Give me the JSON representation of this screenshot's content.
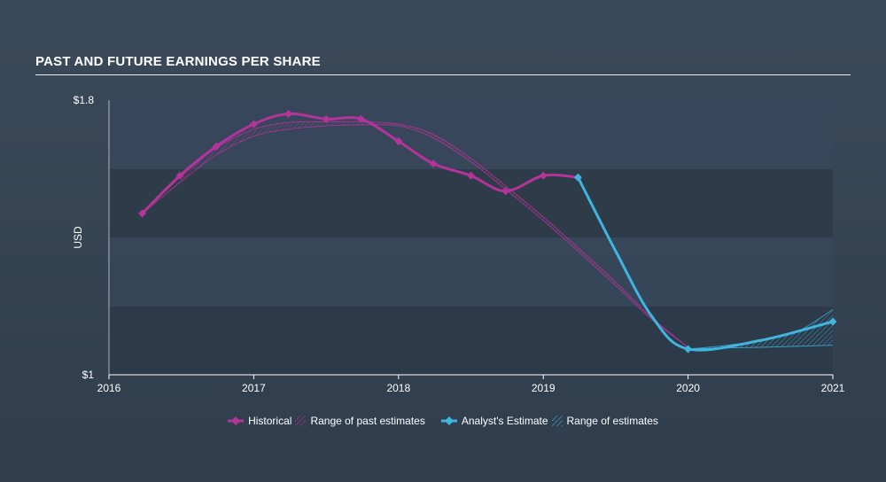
{
  "title": "PAST AND FUTURE EARNINGS PER SHARE",
  "colors": {
    "historical": "#b5349a",
    "estimate": "#3fb5e0",
    "band_dark": "#2d3a48",
    "band_light": "#37465a"
  },
  "chart_data": {
    "type": "line",
    "title": "PAST AND FUTURE EARNINGS PER SHARE",
    "ylabel": "USD",
    "xlabel": "",
    "xlim": [
      2016,
      2021
    ],
    "ylim": [
      1.0,
      1.8
    ],
    "y_tick_labels": [
      "$1.8",
      "$1"
    ],
    "x_tick_labels": [
      "2016",
      "2017",
      "2018",
      "2019",
      "2020",
      "2021"
    ],
    "x_ticks": [
      2016,
      2017,
      2018,
      2019,
      2020,
      2021
    ],
    "legend_position": "bottom-center",
    "series": [
      {
        "name": "Historical",
        "color": "#b5349a",
        "x": [
          2016.23,
          2016.49,
          2016.74,
          2017.0,
          2017.24,
          2017.5,
          2017.74,
          2018.0,
          2018.24,
          2018.5,
          2018.74,
          2019.0,
          2019.24
        ],
        "y": [
          1.47,
          1.58,
          1.665,
          1.73,
          1.76,
          1.745,
          1.745,
          1.68,
          1.615,
          1.58,
          1.535,
          1.58,
          1.575
        ]
      },
      {
        "name": "Range of past estimates",
        "color": "#b5349a",
        "upper": {
          "x": [
            2016.23,
            2016.49,
            2016.74,
            2017.0,
            2017.24,
            2017.5,
            2017.74,
            2018.0,
            2018.24,
            2018.5,
            2018.74,
            2019.0,
            2019.24,
            2019.5,
            2019.74,
            2020.0
          ],
          "y": [
            1.47,
            1.575,
            1.66,
            1.715,
            1.735,
            1.737,
            1.737,
            1.73,
            1.7,
            1.63,
            1.55,
            1.46,
            1.37,
            1.27,
            1.17,
            1.08
          ]
        },
        "lower": {
          "x": [
            2016.23,
            2016.49,
            2016.74,
            2017.0,
            2017.24,
            2017.5,
            2017.74,
            2018.0,
            2018.24,
            2018.5,
            2018.74,
            2019.0,
            2019.24,
            2019.5,
            2019.74,
            2020.0
          ],
          "y": [
            1.47,
            1.56,
            1.64,
            1.695,
            1.715,
            1.725,
            1.728,
            1.725,
            1.69,
            1.62,
            1.54,
            1.45,
            1.36,
            1.26,
            1.165,
            1.08
          ]
        }
      },
      {
        "name": "Analyst's Estimate",
        "color": "#3fb5e0",
        "x": [
          2019.24,
          2019.5,
          2019.75,
          2020.0,
          2020.5,
          2021.0
        ],
        "y": [
          1.575,
          1.36,
          1.17,
          1.075,
          1.1,
          1.155
        ]
      },
      {
        "name": "Range of estimates",
        "color": "#3fb5e0",
        "upper": {
          "x": [
            2020.0,
            2020.25,
            2020.5,
            2020.75,
            2021.0
          ],
          "y": [
            1.075,
            1.085,
            1.1,
            1.125,
            1.19
          ]
        },
        "lower": {
          "x": [
            2020.0,
            2020.25,
            2020.5,
            2020.75,
            2021.0
          ],
          "y": [
            1.075,
            1.078,
            1.08,
            1.083,
            1.086
          ]
        }
      }
    ]
  }
}
